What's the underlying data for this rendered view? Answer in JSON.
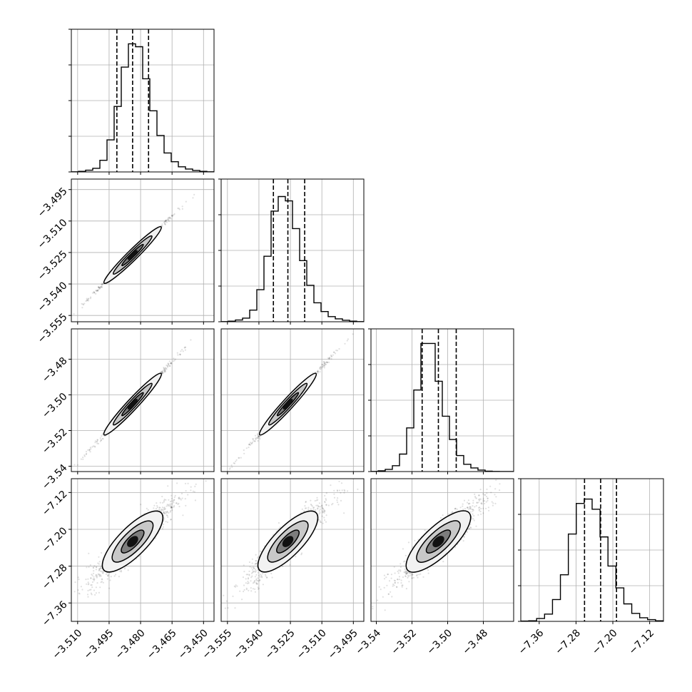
{
  "chart_data": {
    "type": "corner",
    "n_params": 4,
    "colors": {
      "frame": "#000000",
      "grid": "#b0b0b0",
      "contour_fill_light": "#f2f2f2",
      "contour_fill_mid": "#c8c8c8",
      "contour_fill_dark": "#7d7d7d",
      "points": "#000000"
    },
    "parameters": [
      {
        "range": [
          -3.513,
          -3.445
        ],
        "ticks": [
          -3.51,
          -3.495,
          -3.48,
          -3.465,
          -3.45
        ],
        "tick_labels": [
          "−3.510",
          "−3.495",
          "−3.480",
          "−3.465",
          "−3.450"
        ],
        "quantiles": [
          -3.4913,
          -3.4838,
          -3.4762
        ],
        "hist_ylim": [
          0,
          0.98
        ],
        "histogram": [
          0.001,
          0.004,
          0.012,
          0.025,
          0.08,
          0.22,
          0.45,
          0.72,
          0.88,
          0.86,
          0.64,
          0.42,
          0.25,
          0.13,
          0.07,
          0.035,
          0.02,
          0.01,
          0.004,
          0.001
        ]
      },
      {
        "range": [
          -3.558,
          -3.49
        ],
        "ticks": [
          -3.555,
          -3.54,
          -3.525,
          -3.51,
          -3.495
        ],
        "tick_labels": [
          "−3.555",
          "−3.540",
          "−3.525",
          "−3.510",
          "−3.495"
        ],
        "quantiles": [
          -3.5331,
          -3.5262,
          -3.5182
        ],
        "hist_ylim": [
          0,
          0.98
        ],
        "histogram": [
          0.001,
          0.004,
          0.012,
          0.025,
          0.08,
          0.22,
          0.45,
          0.76,
          0.86,
          0.83,
          0.64,
          0.42,
          0.25,
          0.13,
          0.07,
          0.035,
          0.02,
          0.01,
          0.004,
          0.001
        ]
      },
      {
        "range": [
          -3.543,
          -3.463
        ],
        "ticks": [
          -3.54,
          -3.52,
          -3.5,
          -3.48
        ],
        "tick_labels": [
          "−3.54",
          "−3.52",
          "−3.50",
          "−3.48"
        ],
        "quantiles": [
          -3.5143,
          -3.5052,
          -3.4952
        ],
        "hist_ylim": [
          0,
          0.98
        ],
        "histogram": [
          0.001,
          0.005,
          0.015,
          0.04,
          0.12,
          0.3,
          0.56,
          0.88,
          0.88,
          0.62,
          0.38,
          0.22,
          0.11,
          0.05,
          0.025,
          0.01,
          0.003,
          0.001,
          0.0,
          0.0
        ]
      },
      {
        "range": [
          -7.4,
          -7.09
        ],
        "ticks": [
          -7.36,
          -7.28,
          -7.2,
          -7.12
        ],
        "tick_labels": [
          "−7.36",
          "−7.28",
          "−7.20",
          "−7.12"
        ],
        "quantiles": [
          -7.2615,
          -7.2265,
          -7.192
        ],
        "hist_ylim": [
          0,
          0.98
        ],
        "histogram": [
          0.002,
          0.004,
          0.02,
          0.05,
          0.15,
          0.32,
          0.6,
          0.81,
          0.84,
          0.77,
          0.58,
          0.38,
          0.23,
          0.12,
          0.055,
          0.025,
          0.012,
          0.004
        ]
      }
    ],
    "pair_correlations": {
      "1-0": 0.9985,
      "2-0": 0.998,
      "2-1": 0.998,
      "3-0": 0.93,
      "3-1": 0.93,
      "3-2": 0.93
    },
    "grid": true,
    "show_titles": false,
    "axis_labels": []
  }
}
